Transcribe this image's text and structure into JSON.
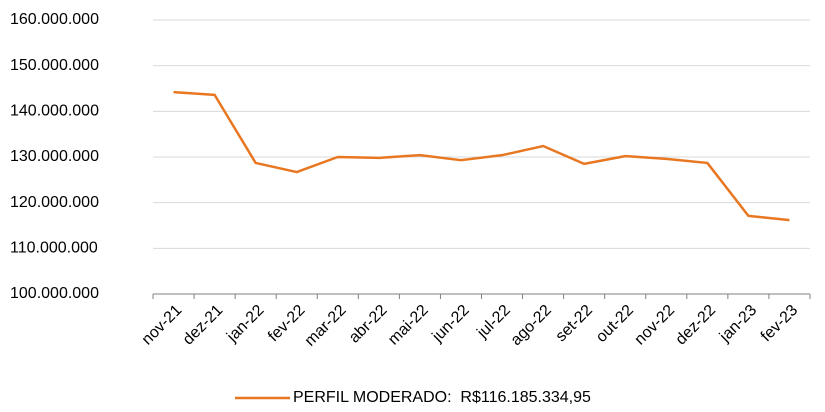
{
  "chart_data": {
    "type": "line",
    "categories": [
      "nov-21",
      "dez-21",
      "jan-22",
      "fev-22",
      "mar-22",
      "abr-22",
      "mai-22",
      "jun-22",
      "jul-22",
      "ago-22",
      "set-22",
      "out-22",
      "nov-22",
      "dez-22",
      "jan-23",
      "fev-23"
    ],
    "series": [
      {
        "name": "PERFIL MODERADO:  R$116.185.334,95",
        "color": "#e87722",
        "values": [
          144200000,
          143600000,
          128700000,
          126700000,
          130000000,
          129800000,
          130400000,
          129300000,
          130400000,
          132400000,
          128500000,
          130200000,
          129600000,
          128700000,
          117100000,
          116185335
        ]
      }
    ],
    "ylim": [
      100000000,
      160000000
    ],
    "yticks": [
      {
        "value": 100000000,
        "label": "100.000.000"
      },
      {
        "value": 110000000,
        "label": "110.000.000"
      },
      {
        "value": 120000000,
        "label": "120.000.000"
      },
      {
        "value": 130000000,
        "label": "130.000.000"
      },
      {
        "value": 140000000,
        "label": "140.000.000"
      },
      {
        "value": 150000000,
        "label": "150.000.000"
      },
      {
        "value": 160000000,
        "label": "160.000.000"
      }
    ],
    "grid": true,
    "legend": "bottom"
  }
}
